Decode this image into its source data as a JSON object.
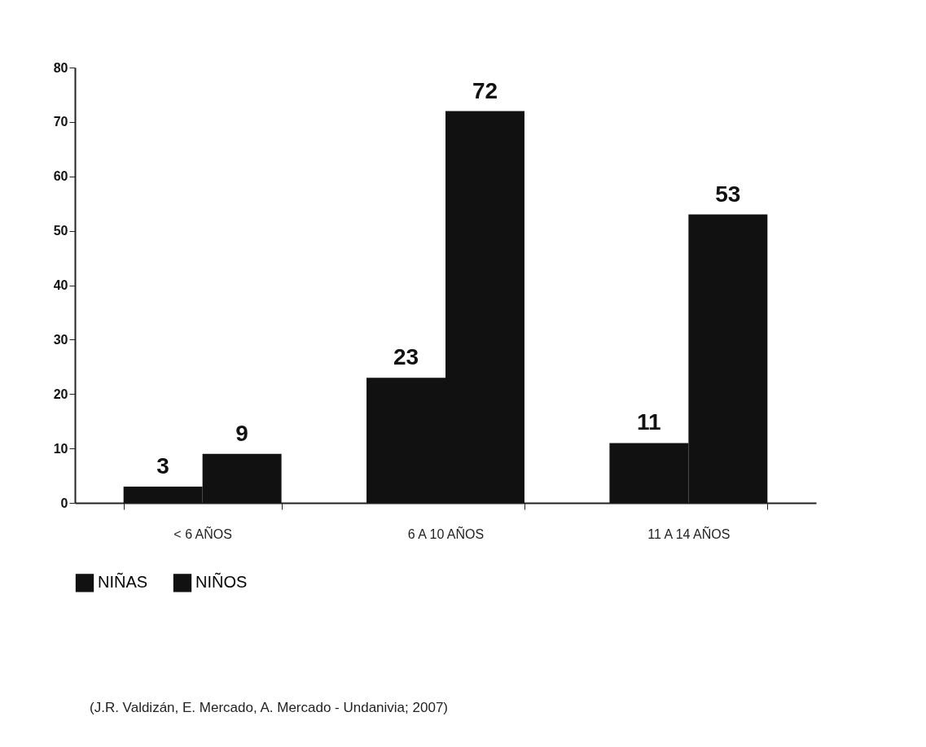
{
  "chart_data": {
    "type": "bar",
    "categories": [
      "< 6 AÑOS",
      "6 A 10 AÑOS",
      "11 A 14 AÑOS"
    ],
    "series": [
      {
        "name": "NIÑAS",
        "color": "#111111",
        "values": [
          3,
          23,
          11
        ]
      },
      {
        "name": "NIÑOS",
        "color": "#111111",
        "values": [
          9,
          72,
          53
        ]
      }
    ],
    "ylim": [
      0,
      80
    ],
    "yticks": [
      0,
      10,
      20,
      30,
      40,
      50,
      60,
      70,
      80
    ],
    "grid": false,
    "legend": "bottom",
    "data_labels": true,
    "annotations": [
      "(J.R. Valdizán, E. Mercado, A. Mercado - Undanivia; 2007)"
    ]
  }
}
